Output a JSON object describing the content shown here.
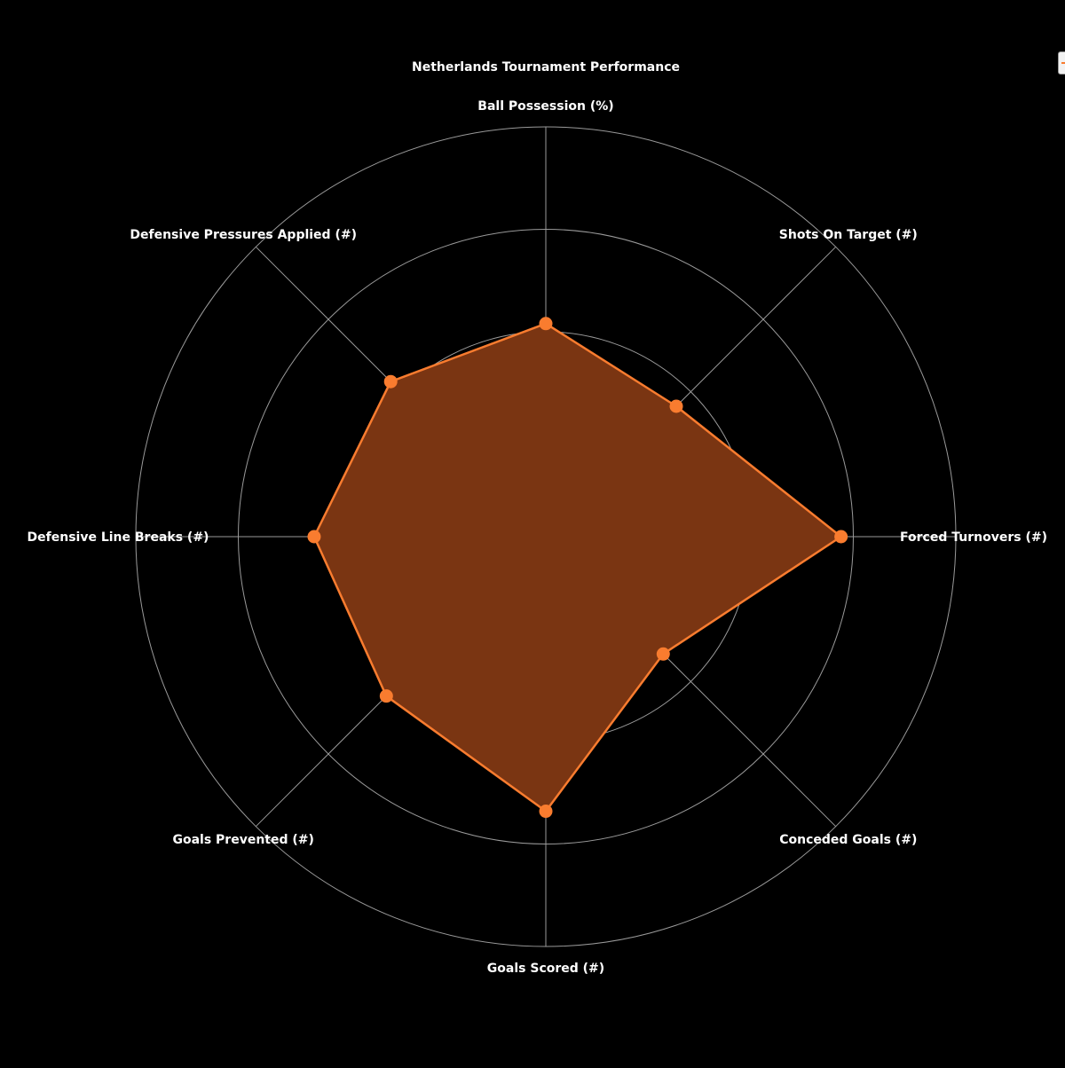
{
  "chart_data": {
    "type": "radar",
    "title": "Netherlands Tournament Performance",
    "categories": [
      "Ball Possession (%)",
      "Shots On Target (#)",
      "Forced Turnovers (#)",
      "Conceded Goals (#)",
      "Goals Scored (#)",
      "Goals Prevented (#)",
      "Defensive Line Breaks (#)",
      "Defensive Pressures Applied (#)"
    ],
    "series": [
      {
        "values": [
          1.04,
          0.9,
          1.44,
          0.81,
          1.34,
          1.1,
          1.13,
          1.07
        ]
      }
    ],
    "rlim": [
      0,
      2
    ],
    "grid_levels": [
      0.5,
      1.0,
      1.5,
      2.0
    ],
    "grid": true,
    "legend_position": "top-right",
    "colors": {
      "background": "#000000",
      "line": "#F97C2F",
      "fill": "#7A3512",
      "grid": "#9a9a9a",
      "text": "#ffffff"
    }
  }
}
